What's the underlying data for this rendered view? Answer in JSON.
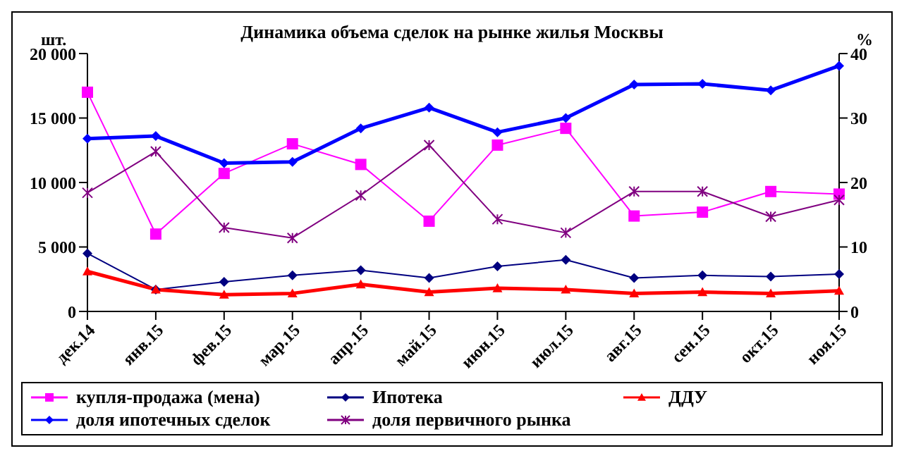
{
  "chart_data": {
    "type": "line",
    "title": "Динамика объема сделок на рынке жилья Москвы",
    "ylabel": "шт.",
    "y2label": "%",
    "categories": [
      "дек.14",
      "янв.15",
      "фев.15",
      "мар.15",
      "апр.15",
      "май.15",
      "июн.15",
      "июл.15",
      "авг.15",
      "сен.15",
      "окт.15",
      "ноя.15"
    ],
    "series": [
      {
        "name": "купля-продажа (мена)",
        "color": "#ff00ff",
        "marker": "square",
        "values": [
          17000,
          6000,
          10700,
          13000,
          11400,
          7000,
          12900,
          14200,
          7400,
          7700,
          9300,
          9100
        ]
      },
      {
        "name": "Ипотека",
        "color": "#000080",
        "marker": "diamond",
        "values": [
          4500,
          1700,
          2300,
          2800,
          3200,
          2600,
          3500,
          4000,
          2600,
          2800,
          2700,
          2900
        ]
      },
      {
        "name": "ДДУ",
        "color": "#ff0000",
        "marker": "triangle",
        "values": [
          3100,
          1700,
          1300,
          1400,
          2100,
          1500,
          1800,
          1700,
          1400,
          1500,
          1400,
          1600
        ]
      },
      {
        "name": "доля ипотечных сделок",
        "color": "#0000ff",
        "marker": "diamond",
        "axis": "y2",
        "values": [
          26.8,
          27.2,
          23,
          23.2,
          28.4,
          31.6,
          27.8,
          30,
          35.2,
          35.3,
          34.3,
          38.1
        ]
      },
      {
        "name": "доля первичного рынка",
        "color": "#800080",
        "marker": "cross",
        "axis": "y2",
        "values": [
          18.4,
          24.8,
          13,
          11.4,
          18,
          25.8,
          14.3,
          12.2,
          18.6,
          18.6,
          14.7,
          17.3
        ]
      }
    ],
    "ylim": [
      0,
      20000
    ],
    "yticks": [
      {
        "value": 0,
        "label": "0"
      },
      {
        "value": 5000,
        "label": "5 000"
      },
      {
        "value": 10000,
        "label": "10 000"
      },
      {
        "value": 15000,
        "label": "15 000"
      },
      {
        "value": 20000,
        "label": "20 000"
      }
    ],
    "y2lim": [
      0,
      40
    ],
    "y2ticks": [
      0,
      10,
      20,
      30,
      40
    ],
    "legend": "bottom",
    "grid": false
  }
}
